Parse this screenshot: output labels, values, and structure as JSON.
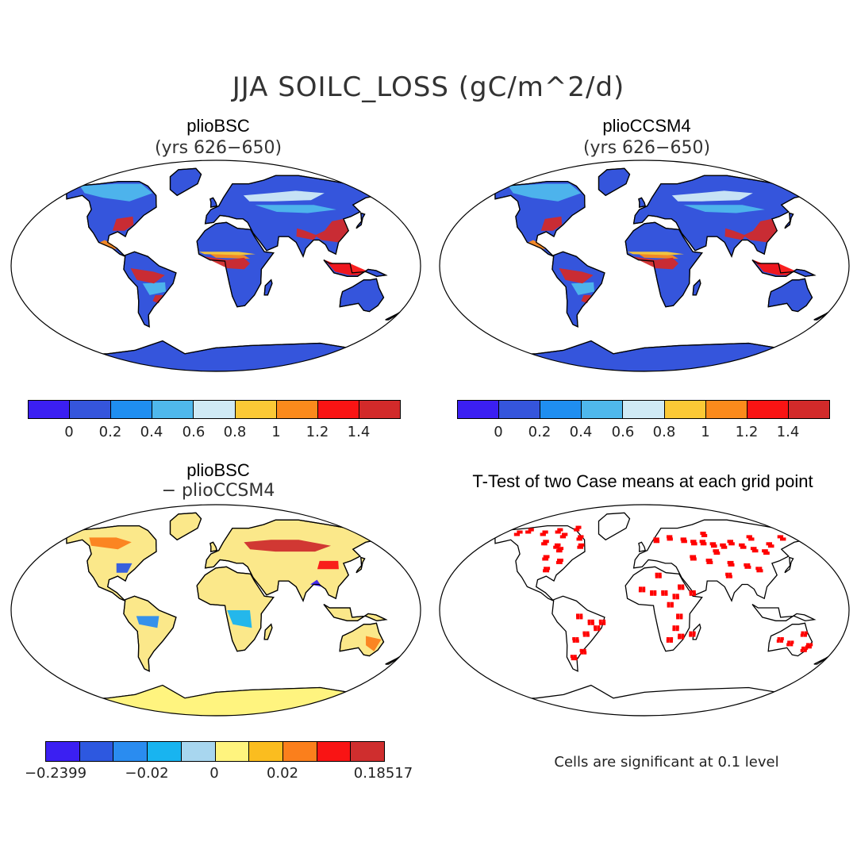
{
  "title": "JJA SOILC_LOSS (gC/m^2/d)",
  "panels": {
    "tl": {
      "name": "plioBSC",
      "sub": "(yrs 626−650)"
    },
    "tr": {
      "name": "plioCCSM4",
      "sub": "(yrs 626−650)"
    },
    "bl": {
      "name": "plioBSC",
      "sub": "− plioCCSM4"
    },
    "br": {
      "name": "T-Test of two Case means at each grid point"
    }
  },
  "colorbar_abs": {
    "colors": [
      "#3b1ff2",
      "#3555dc",
      "#1f8ef0",
      "#4fb8ec",
      "#cfeaf5",
      "#fbc936",
      "#fb8a1c",
      "#f91414",
      "#d22a2a"
    ],
    "ticks": [
      "0",
      "0.2",
      "0.4",
      "0.6",
      "0.8",
      "1",
      "1.2",
      "1.4"
    ]
  },
  "colorbar_diff": {
    "colors": [
      "#3b1ff2",
      "#2d58e0",
      "#2a8cf0",
      "#18b4f0",
      "#a8d6ef",
      "#fff47e",
      "#fbbd1f",
      "#fb7f1c",
      "#f91414",
      "#cf2e2e"
    ],
    "ticks": [
      "−0.2399",
      "−0.02",
      "0",
      "0.02",
      "0.18517"
    ]
  },
  "significance_note": "Cells are significant at 0.1 level",
  "colors": {
    "ocean": "#ffffff",
    "land_low": "#3555dc",
    "land_high": "#d22a2a",
    "significant": "#ff0000"
  }
}
